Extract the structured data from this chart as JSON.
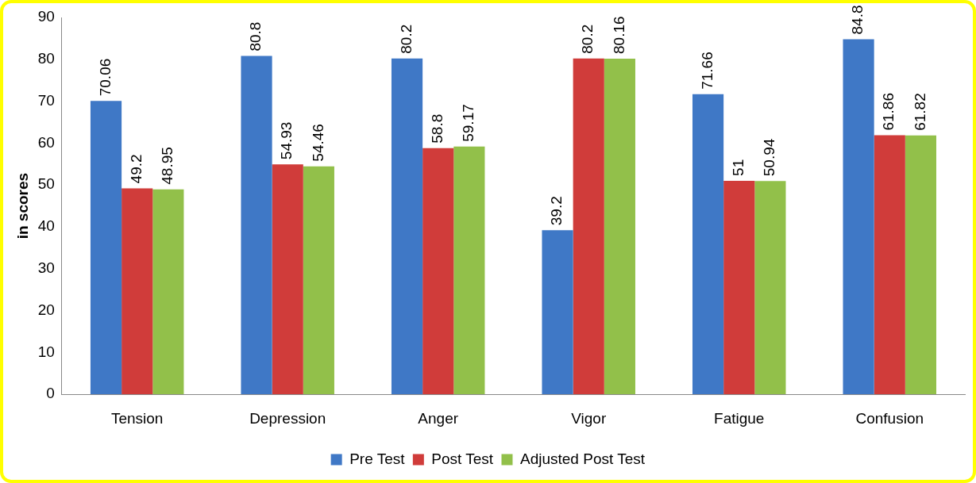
{
  "chart_data": {
    "type": "bar",
    "ylabel": "in scores",
    "categories": [
      "Tension",
      "Depression",
      "Anger",
      "Vigor",
      "Fatigue",
      "Confusion"
    ],
    "series": [
      {
        "name": "Pre Test",
        "color": "#3f78c6",
        "values": [
          70.06,
          80.8,
          80.2,
          39.2,
          71.66,
          84.8
        ]
      },
      {
        "name": "Post Test",
        "color": "#d03c3a",
        "values": [
          49.2,
          54.93,
          58.8,
          80.2,
          51,
          61.86
        ]
      },
      {
        "name": "Adjusted Post Test",
        "color": "#92c04a",
        "values": [
          48.95,
          54.46,
          59.17,
          80.16,
          50.94,
          61.82
        ]
      }
    ],
    "ylim": [
      0,
      90
    ],
    "yticks": [
      0,
      10,
      20,
      30,
      40,
      50,
      60,
      70,
      80,
      90
    ],
    "grid": false,
    "legend": "bottom",
    "data_labels": true
  }
}
